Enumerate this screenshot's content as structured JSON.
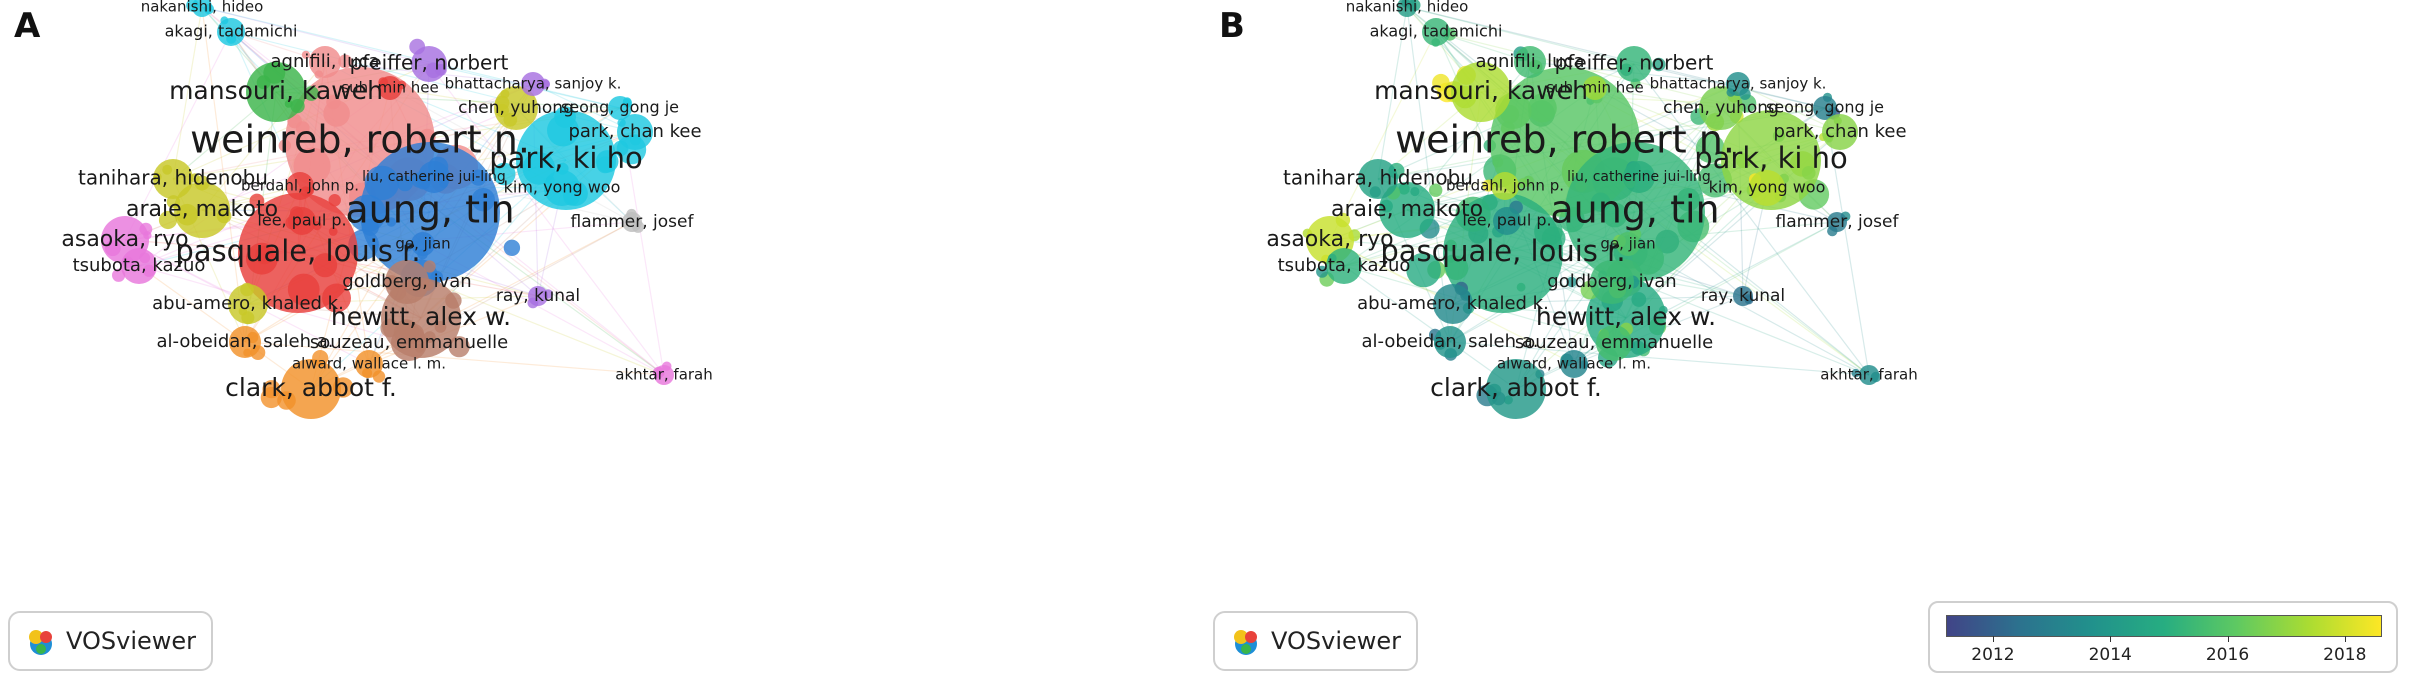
{
  "panels": [
    {
      "letter": "A",
      "mode": "cluster"
    },
    {
      "letter": "B",
      "mode": "overlay"
    }
  ],
  "badge": {
    "text": "VOSviewer"
  },
  "colorbar": {
    "ticks": [
      "2012",
      "2014",
      "2016",
      "2018"
    ],
    "range": [
      2011.2,
      2018.6
    ],
    "colors": [
      "#414487",
      "#2c728e",
      "#21918c",
      "#27ad81",
      "#5ec962",
      "#aadc32",
      "#fde725"
    ]
  },
  "authors": [
    {
      "label": "weinreb, robert n.",
      "cluster": 1,
      "year": 2016.0
    },
    {
      "label": "aung, tin",
      "cluster": 3,
      "year": 2015.2
    },
    {
      "label": "park, ki ho",
      "cluster": 5,
      "year": 2016.9
    },
    {
      "label": "pasquale, louis r.",
      "cluster": 0,
      "year": 2015.0
    },
    {
      "label": "mansouri, kaweh",
      "cluster": 2,
      "year": 2017.4
    },
    {
      "label": "hewitt, alex w.",
      "cluster": 9,
      "year": 2014.8
    },
    {
      "label": "clark, abbot f.",
      "cluster": 6,
      "year": 2014.0
    },
    {
      "label": "araie, makoto",
      "cluster": 4,
      "year": 2014.9
    },
    {
      "label": "tanihara, hidenobu",
      "cluster": 4,
      "year": 2014.4
    },
    {
      "label": "asaoka, ryo",
      "cluster": 7,
      "year": 2017.8
    },
    {
      "label": "tsubota, kazuo",
      "cluster": 7,
      "year": 2015.1
    },
    {
      "label": "abu-amero, khaled k.",
      "cluster": 4,
      "year": 2013.4
    },
    {
      "label": "al-obeidan, saleh a.",
      "cluster": 6,
      "year": 2013.8
    },
    {
      "label": "goldberg, ivan",
      "cluster": 9,
      "year": 2015.4
    },
    {
      "label": "souzeau, emmanuelle",
      "cluster": 9,
      "year": 2015.6
    },
    {
      "label": "alward, wallace l. m.",
      "cluster": 6,
      "year": 2013.2
    },
    {
      "label": "akhtar, farah",
      "cluster": 7,
      "year": 2013.5
    },
    {
      "label": "ray, kunal",
      "cluster": 8,
      "year": 2012.5
    },
    {
      "label": "flammer, josef",
      "cluster": 10,
      "year": 2012.8
    },
    {
      "label": "kim, yong woo",
      "cluster": 5,
      "year": 2017.6
    },
    {
      "label": "seong, gong je",
      "cluster": 5,
      "year": 2013.0
    },
    {
      "label": "park, chan kee",
      "cluster": 5,
      "year": 2016.8
    },
    {
      "label": "chen, yuhong",
      "cluster": 4,
      "year": 2016.6
    },
    {
      "label": "bhattacharya, sanjoy k.",
      "cluster": 8,
      "year": 2013.6
    },
    {
      "label": "pfeiffer, norbert",
      "cluster": 8,
      "year": 2015.2
    },
    {
      "label": "agnifili, luca",
      "cluster": 1,
      "year": 2015.5
    },
    {
      "label": "suh, min hee",
      "cluster": 0,
      "year": 2017.2
    },
    {
      "label": "akagi, tadamichi",
      "cluster": 5,
      "year": 2015.3
    },
    {
      "label": "nakanishi, hideo",
      "cluster": 5,
      "year": 2014.2
    },
    {
      "label": "berdahl, john p.",
      "cluster": 0,
      "year": 2017.5
    },
    {
      "label": "liu, catherine jui-ling",
      "cluster": 3,
      "year": 2015.0
    },
    {
      "label": "lee, paul p.",
      "cluster": 0,
      "year": 2013.6
    },
    {
      "label": "ge, jian",
      "cluster": 3,
      "year": 2015.8
    }
  ]
}
